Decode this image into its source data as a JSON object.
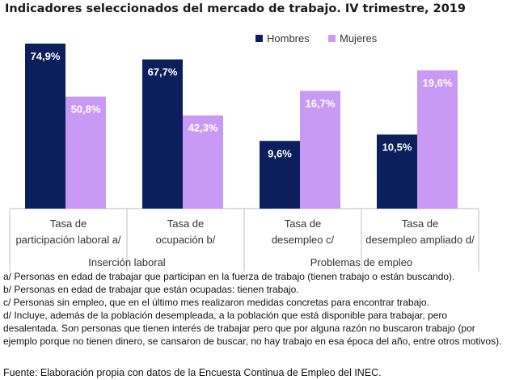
{
  "title": "Indicadores seleccionados del mercado de trabajo. IV trimestre, 2019",
  "chart_data": {
    "type": "bar",
    "categories": [
      "Tasa de\nparticipación laboral a/",
      "Tasa de\nocupación b/",
      "Tasa de\ndesempleo c/",
      "Tasa de\ndesempleo ampliado d/"
    ],
    "groups": [
      {
        "label": "Inserción laboral",
        "categories": [
          0,
          1
        ]
      },
      {
        "label": "Problemas de empleo",
        "categories": [
          2,
          3
        ]
      }
    ],
    "series": [
      {
        "name": "Hombres",
        "color": "#0b1f5c",
        "values": [
          74.9,
          67.7,
          9.6,
          10.5
        ],
        "labels": [
          "74,9%",
          "67,7%",
          "9,6%",
          "10,5%"
        ]
      },
      {
        "name": "Mujeres",
        "color": "#c99af5",
        "values": [
          50.8,
          42.3,
          16.7,
          19.6
        ],
        "labels": [
          "50,8%",
          "42,3%",
          "16,7%",
          "19,6%"
        ]
      }
    ],
    "panels": [
      {
        "categories": [
          0,
          1
        ],
        "ylim": [
          0,
          80
        ]
      },
      {
        "categories": [
          2,
          3
        ],
        "ylim": [
          0,
          25
        ]
      }
    ],
    "legend_position": "top-right",
    "grid": false
  },
  "notes": [
    "a/ Personas en edad de trabajar que participan en la fuerza de trabajo (tienen trabajo o están buscando).",
    "b/ Personas en edad de trabajar que están ocupadas: tienen trabajo.",
    "c/ Personas sin empleo, que en el último mes realizaron medidas concretas para encontrar trabajo.",
    "d/ Incluye, además de la población desempleada, a la población que está disponible para trabajar, pero",
    "desalentada. Son personas que tienen interés de trabajar pero que por alguna razón no buscaron trabajo (por",
    "ejemplo porque no tienen dinero, se cansaron de buscar, no hay trabajo en esa época del año, entre otros motivos)."
  ],
  "source": "Fuente: Elaboración propia con datos de la Encuesta Continua de Empleo del INEC."
}
